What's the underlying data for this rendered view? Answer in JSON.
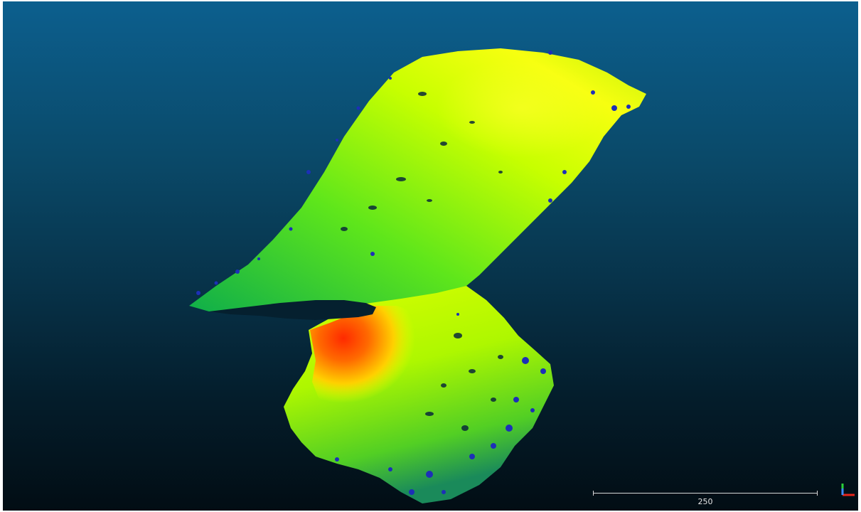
{
  "viewer": {
    "background_top": "#0c5f8e",
    "background_bottom": "#020d14",
    "colormap": [
      "#1d2fb8",
      "#00c837",
      "#9cff00",
      "#ffff00",
      "#ff2a00"
    ]
  },
  "scale_bar": {
    "label": "250"
  },
  "axes": {
    "x_color": "#e8251b",
    "y_color": "#2ad13a",
    "z_color": "#3d8cff",
    "icon": "axis-trihedron-icon"
  }
}
